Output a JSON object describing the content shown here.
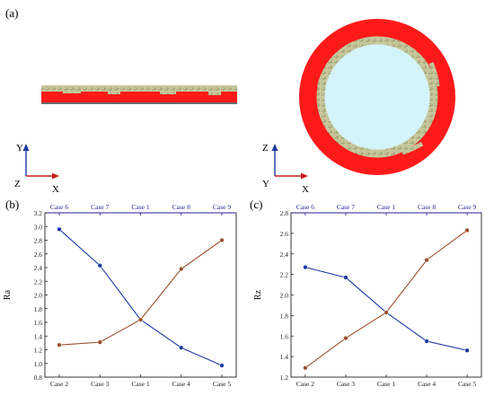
{
  "panel_labels": {
    "a": "(a)",
    "b": "(b)",
    "c": "(c)"
  },
  "axes_left": {
    "vertical": "Y",
    "origin": "Z",
    "horizontal": "X"
  },
  "axes_right": {
    "vertical": "Z",
    "origin": "Y",
    "horizontal": "X"
  },
  "colors": {
    "red": "#ff1a1a",
    "tan": "#b8b98c",
    "sky": "#d4f4fb",
    "blue": "#1c3aa3",
    "brown": "#9b4f2b",
    "axis": "#1f1f9a"
  },
  "chart_data": [
    {
      "type": "line",
      "panel": "(b)",
      "ylabel": "Ra",
      "ylim": [
        0.8,
        3.2
      ],
      "yticks": [
        "0.8",
        "1.0",
        "1.2",
        "1.4",
        "1.6",
        "1.8",
        "2.0",
        "2.2",
        "2.4",
        "2.6",
        "2.8",
        "3.0",
        "3.2"
      ],
      "top_categories": [
        "Case 6",
        "Case 7",
        "Case 1",
        "Case 8",
        "Case 9"
      ],
      "bottom_categories": [
        "Case 2",
        "Case 3",
        "Case 1",
        "Case 4",
        "Case 5"
      ],
      "series": [
        {
          "axis": "top",
          "color": "#1c3aa3",
          "values": [
            2.96,
            2.43,
            1.64,
            1.23,
            0.97
          ]
        },
        {
          "axis": "bottom",
          "color": "#9b4f2b",
          "values": [
            1.27,
            1.31,
            1.64,
            2.38,
            2.8
          ]
        }
      ]
    },
    {
      "type": "line",
      "panel": "(c)",
      "ylabel": "Rz",
      "ylim": [
        1.2,
        2.8
      ],
      "yticks": [
        "1.2",
        "1.4",
        "1.6",
        "1.8",
        "2.0",
        "2.2",
        "2.4",
        "2.6",
        "2.8"
      ],
      "top_categories": [
        "Case 6",
        "Case 7",
        "Case 1",
        "Case 8",
        "Case 9"
      ],
      "bottom_categories": [
        "Case 2",
        "Case 3",
        "Case 1",
        "Case 4",
        "Case 5"
      ],
      "series": [
        {
          "axis": "top",
          "color": "#1c3aa3",
          "values": [
            2.27,
            2.17,
            1.83,
            1.55,
            1.46
          ]
        },
        {
          "axis": "bottom",
          "color": "#9b4f2b",
          "values": [
            1.29,
            1.58,
            1.83,
            2.34,
            2.63
          ]
        }
      ]
    }
  ]
}
